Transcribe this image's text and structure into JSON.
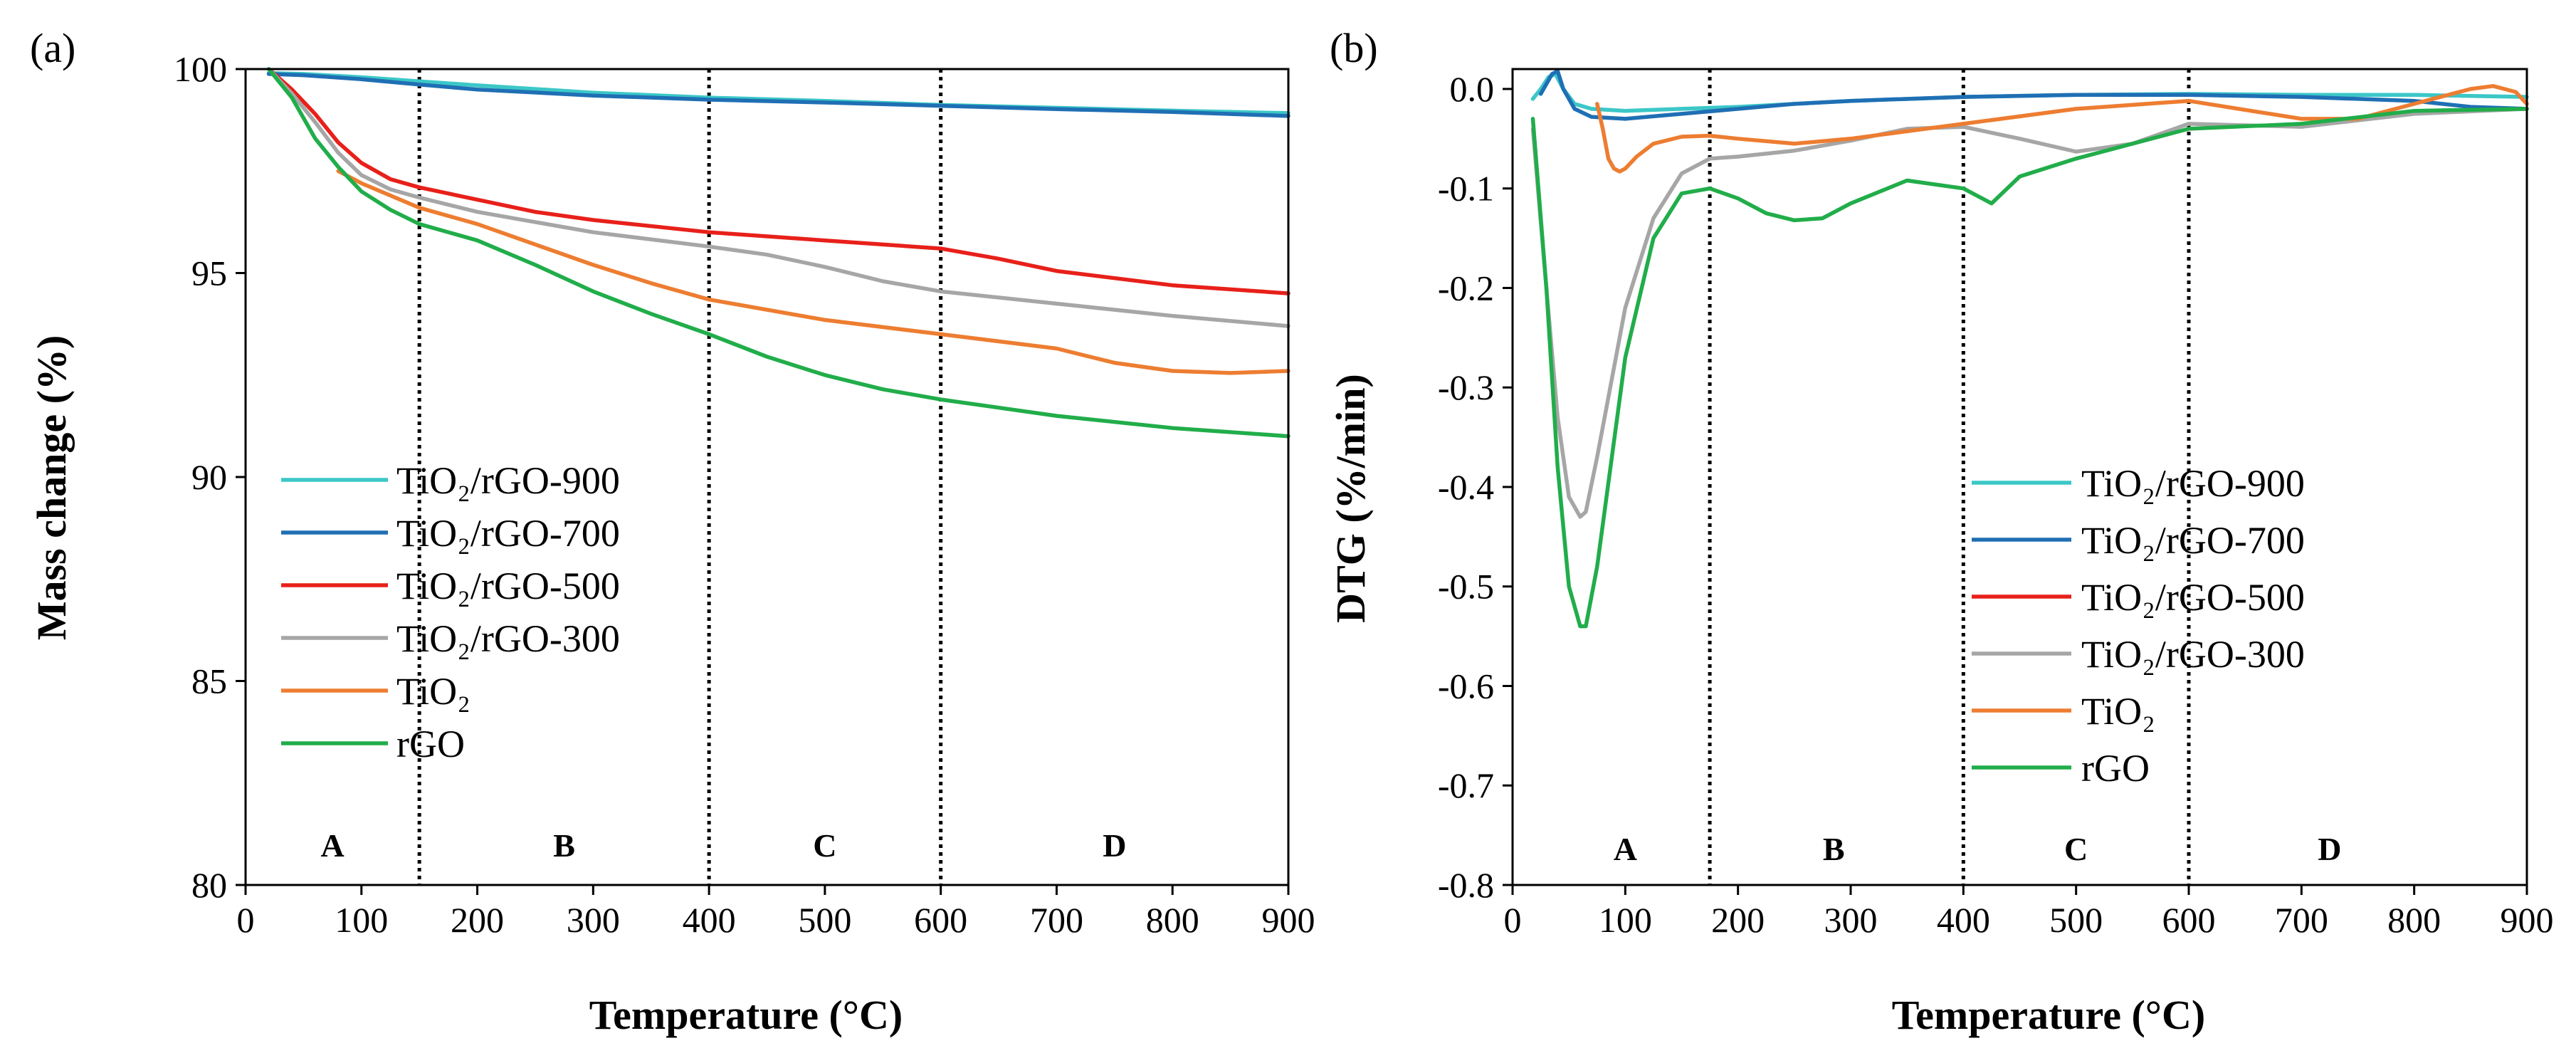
{
  "chart_data": [
    {
      "id": "a",
      "type": "line",
      "panel_label": "(a)",
      "xlabel": "Temperature (°C)",
      "ylabel": "Mass change (%)",
      "xlim": [
        0,
        900
      ],
      "ylim": [
        80,
        100
      ],
      "xticks": [
        0,
        100,
        200,
        300,
        400,
        500,
        600,
        700,
        800,
        900
      ],
      "yticks": [
        80,
        85,
        90,
        95,
        100
      ],
      "legend_position": "center-left",
      "dividers": [
        150,
        400,
        600
      ],
      "regions": [
        {
          "label": "A",
          "x": 75
        },
        {
          "label": "B",
          "x": 275
        },
        {
          "label": "C",
          "x": 500
        },
        {
          "label": "D",
          "x": 750
        }
      ],
      "region_label_y": 80.7,
      "series": [
        {
          "name": "TiO₂/rGO-900",
          "color": "#3CC7C7",
          "x": [
            20,
            50,
            100,
            150,
            200,
            300,
            400,
            500,
            600,
            700,
            800,
            900
          ],
          "values": [
            99.9,
            99.88,
            99.8,
            99.7,
            99.6,
            99.42,
            99.3,
            99.22,
            99.12,
            99.05,
            98.98,
            98.92
          ]
        },
        {
          "name": "TiO₂/rGO-700",
          "color": "#1F6FB4",
          "x": [
            20,
            50,
            100,
            150,
            200,
            300,
            400,
            500,
            600,
            700,
            800,
            900
          ],
          "values": [
            99.88,
            99.85,
            99.75,
            99.62,
            99.5,
            99.35,
            99.25,
            99.18,
            99.1,
            99.02,
            98.95,
            98.85
          ]
        },
        {
          "name": "TiO₂/rGO-500",
          "color": "#E8201A",
          "x": [
            20,
            40,
            60,
            80,
            100,
            125,
            150,
            200,
            250,
            300,
            400,
            500,
            600,
            650,
            700,
            800,
            900
          ],
          "values": [
            100,
            99.5,
            98.9,
            98.2,
            97.7,
            97.3,
            97.1,
            96.8,
            96.5,
            96.3,
            96.0,
            95.8,
            95.6,
            95.35,
            95.05,
            94.7,
            94.5
          ]
        },
        {
          "name": "TiO₂/rGO-300",
          "color": "#A6A6A6",
          "x": [
            20,
            40,
            60,
            80,
            100,
            125,
            150,
            200,
            250,
            300,
            400,
            450,
            500,
            550,
            600,
            700,
            800,
            900
          ],
          "values": [
            100,
            99.4,
            98.7,
            97.95,
            97.4,
            97.05,
            96.85,
            96.5,
            96.25,
            96.0,
            95.65,
            95.45,
            95.15,
            94.8,
            94.55,
            94.25,
            93.95,
            93.7
          ]
        },
        {
          "name": "TiO₂",
          "color": "#ED7D31",
          "x": [
            80,
            100,
            150,
            200,
            250,
            300,
            350,
            400,
            500,
            600,
            700,
            750,
            800,
            850,
            900
          ],
          "values": [
            97.5,
            97.2,
            96.6,
            96.2,
            95.7,
            95.2,
            94.75,
            94.35,
            93.85,
            93.5,
            93.15,
            92.8,
            92.6,
            92.55,
            92.6
          ]
        },
        {
          "name": "rGO",
          "color": "#21AD4A",
          "x": [
            20,
            40,
            60,
            80,
            100,
            125,
            150,
            200,
            250,
            300,
            350,
            400,
            450,
            500,
            550,
            600,
            700,
            800,
            900
          ],
          "values": [
            100,
            99.3,
            98.3,
            97.6,
            97.0,
            96.55,
            96.2,
            95.8,
            95.2,
            94.55,
            94.0,
            93.5,
            92.95,
            92.5,
            92.15,
            91.9,
            91.5,
            91.2,
            91.0
          ]
        }
      ]
    },
    {
      "id": "b",
      "type": "line",
      "panel_label": "(b)",
      "xlabel": "Temperature (°C)",
      "ylabel": "DTG (%/min)",
      "xlim": [
        0,
        900
      ],
      "ylim": [
        -0.8,
        0.02
      ],
      "xticks": [
        0,
        100,
        200,
        300,
        400,
        500,
        600,
        700,
        800,
        900
      ],
      "yticks": [
        -0.8,
        -0.7,
        -0.6,
        -0.5,
        -0.4,
        -0.3,
        -0.2,
        -0.1,
        0.0
      ],
      "ytick_labels": [
        "-0.8",
        "-0.7",
        "-0.6",
        "-0.5",
        "-0.4",
        "-0.3",
        "-0.2",
        "-0.1",
        "0.0"
      ],
      "legend_position": "center-right",
      "dividers": [
        175,
        400,
        600
      ],
      "regions": [
        {
          "label": "A",
          "x": 100
        },
        {
          "label": "B",
          "x": 285
        },
        {
          "label": "C",
          "x": 500
        },
        {
          "label": "D",
          "x": 725
        }
      ],
      "region_label_y": -0.775,
      "series": [
        {
          "name": "TiO₂/rGO-900",
          "color": "#3CC7C7",
          "x": [
            18,
            25,
            32,
            38,
            45,
            55,
            70,
            100,
            150,
            200,
            300,
            400,
            500,
            600,
            700,
            800,
            900
          ],
          "values": [
            -0.01,
            0.0,
            0.012,
            0.015,
            0.0,
            -0.015,
            -0.02,
            -0.022,
            -0.02,
            -0.018,
            -0.012,
            -0.008,
            -0.006,
            -0.005,
            -0.006,
            -0.006,
            -0.008
          ]
        },
        {
          "name": "TiO₂/rGO-700",
          "color": "#1F6FB4",
          "x": [
            25,
            30,
            35,
            40,
            45,
            55,
            70,
            100,
            150,
            200,
            250,
            300,
            400,
            500,
            600,
            700,
            800,
            850,
            900
          ],
          "values": [
            -0.005,
            0.005,
            0.015,
            0.018,
            0.0,
            -0.02,
            -0.028,
            -0.03,
            -0.025,
            -0.02,
            -0.015,
            -0.012,
            -0.008,
            -0.006,
            -0.006,
            -0.008,
            -0.012,
            -0.018,
            -0.02
          ]
        },
        {
          "name": "TiO₂/rGO-500",
          "color": "#E8201A",
          "x": [],
          "values": []
        },
        {
          "name": "TiO₂/rGO-300",
          "color": "#A6A6A6",
          "x": [
            18,
            30,
            40,
            50,
            60,
            65,
            75,
            100,
            125,
            150,
            175,
            200,
            250,
            300,
            350,
            400,
            450,
            500,
            550,
            600,
            700,
            800,
            900
          ],
          "values": [
            -0.04,
            -0.2,
            -0.33,
            -0.41,
            -0.43,
            -0.425,
            -0.37,
            -0.22,
            -0.13,
            -0.085,
            -0.07,
            -0.068,
            -0.062,
            -0.052,
            -0.04,
            -0.038,
            -0.05,
            -0.063,
            -0.055,
            -0.035,
            -0.038,
            -0.025,
            -0.02
          ]
        },
        {
          "name": "TiO₂",
          "color": "#ED7D31",
          "x": [
            75,
            80,
            85,
            90,
            95,
            100,
            110,
            125,
            150,
            175,
            200,
            250,
            300,
            400,
            500,
            600,
            700,
            750,
            800,
            850,
            870,
            890,
            900
          ],
          "values": [
            -0.015,
            -0.04,
            -0.07,
            -0.08,
            -0.083,
            -0.08,
            -0.068,
            -0.055,
            -0.048,
            -0.047,
            -0.05,
            -0.055,
            -0.05,
            -0.035,
            -0.02,
            -0.012,
            -0.03,
            -0.03,
            -0.015,
            0.0,
            0.003,
            -0.003,
            -0.015
          ]
        },
        {
          "name": "rGO",
          "color": "#21AD4A",
          "x": [
            18,
            30,
            40,
            50,
            60,
            65,
            75,
            100,
            125,
            150,
            175,
            200,
            225,
            250,
            275,
            300,
            350,
            400,
            425,
            450,
            500,
            600,
            700,
            800,
            900
          ],
          "values": [
            -0.03,
            -0.2,
            -0.38,
            -0.5,
            -0.54,
            -0.54,
            -0.48,
            -0.27,
            -0.15,
            -0.105,
            -0.1,
            -0.11,
            -0.125,
            -0.132,
            -0.13,
            -0.115,
            -0.092,
            -0.1,
            -0.115,
            -0.088,
            -0.07,
            -0.04,
            -0.035,
            -0.022,
            -0.02
          ]
        }
      ]
    }
  ]
}
